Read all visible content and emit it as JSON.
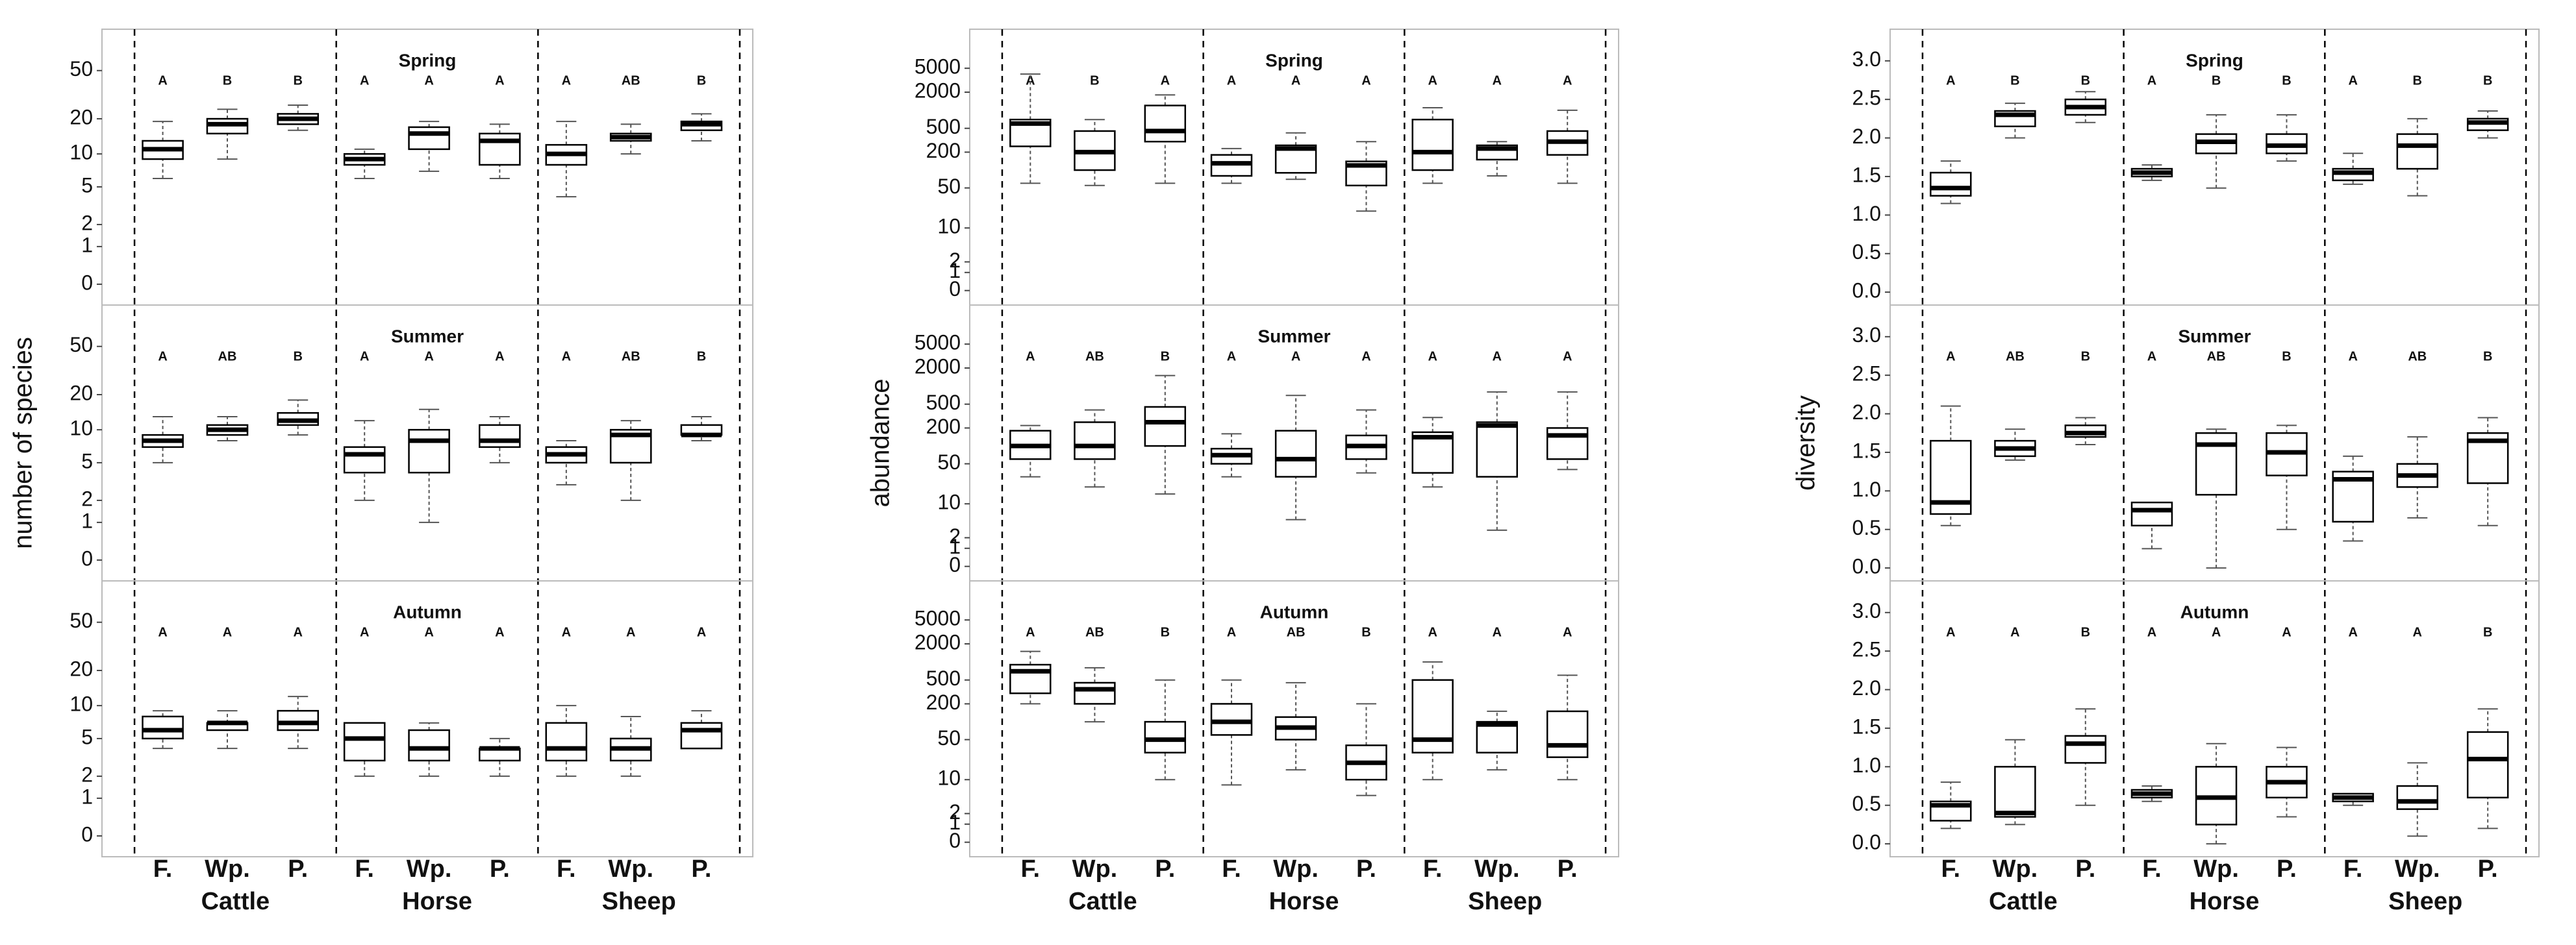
{
  "chart_data": [
    {
      "type": "box",
      "scale": "log1p",
      "ylabel": "number of species",
      "ylim": [
        -0.25,
        80
      ],
      "yticks": [
        0,
        1,
        2,
        5,
        10,
        20,
        50
      ],
      "groups": [
        "Cattle",
        "Horse",
        "Sheep"
      ],
      "subcategories": [
        "F.",
        "Wp.",
        "P."
      ],
      "facets": [
        {
          "title": "Spring",
          "letters": [
            "A",
            "B",
            "B",
            "A",
            "A",
            "A",
            "A",
            "AB",
            "B"
          ],
          "boxes": [
            [
              6,
              9,
              11,
              13,
              19
            ],
            [
              9,
              15,
              18,
              20,
              24
            ],
            [
              16,
              18,
              20,
              22,
              26
            ],
            [
              6,
              8,
              9,
              10,
              11
            ],
            [
              7,
              11,
              15,
              17,
              19
            ],
            [
              6,
              8,
              13,
              15,
              18
            ],
            [
              4,
              8,
              10,
              12,
              19
            ],
            [
              10,
              13,
              14,
              15,
              18
            ],
            [
              13,
              16,
              18,
              19,
              22
            ]
          ]
        },
        {
          "title": "Summer",
          "letters": [
            "A",
            "AB",
            "B",
            "A",
            "A",
            "A",
            "A",
            "AB",
            "B"
          ],
          "boxes": [
            [
              5,
              7,
              8,
              9,
              13
            ],
            [
              8,
              9,
              10,
              11,
              13
            ],
            [
              9,
              11,
              12,
              14,
              18
            ],
            [
              2,
              4,
              6,
              7,
              12
            ],
            [
              1,
              4,
              8,
              10,
              15
            ],
            [
              5,
              7,
              8,
              11,
              13
            ],
            [
              3,
              5,
              6,
              7,
              8
            ],
            [
              2,
              5,
              9,
              10,
              12
            ],
            [
              8,
              9,
              9,
              11,
              13
            ]
          ]
        },
        {
          "title": "Autumn",
          "letters": [
            "A",
            "A",
            "A",
            "A",
            "A",
            "A",
            "A",
            "A",
            "A"
          ],
          "boxes": [
            [
              4,
              5,
              6,
              8,
              9
            ],
            [
              4,
              6,
              7,
              7,
              9
            ],
            [
              4,
              6,
              7,
              9,
              12
            ],
            [
              2,
              3,
              5,
              7,
              7
            ],
            [
              2,
              3,
              4,
              6,
              7
            ],
            [
              2,
              3,
              4,
              4,
              5
            ],
            [
              2,
              3,
              4,
              7,
              10
            ],
            [
              2,
              3,
              4,
              5,
              8
            ],
            [
              4,
              4,
              6,
              7,
              9
            ]
          ]
        }
      ]
    },
    {
      "type": "box",
      "scale": "log1p",
      "ylabel": "abundance",
      "ylim": [
        -0.3,
        12000
      ],
      "yticks": [
        0,
        1,
        2,
        10,
        50,
        200,
        500,
        2000,
        5000
      ],
      "groups": [
        "Cattle",
        "Horse",
        "Sheep"
      ],
      "subcategories": [
        "F.",
        "Wp.",
        "P."
      ],
      "facets": [
        {
          "title": "Spring",
          "letters": [
            "A",
            "B",
            "A",
            "A",
            "A",
            "A",
            "A",
            "A",
            "A"
          ],
          "boxes": [
            [
              60,
              250,
              600,
              700,
              4000
            ],
            [
              55,
              100,
              200,
              450,
              700
            ],
            [
              60,
              300,
              450,
              1200,
              1800
            ],
            [
              60,
              80,
              130,
              180,
              230
            ],
            [
              70,
              90,
              230,
              260,
              420
            ],
            [
              20,
              55,
              120,
              140,
              300
            ],
            [
              60,
              100,
              200,
              700,
              1100
            ],
            [
              80,
              150,
              230,
              260,
              300
            ],
            [
              60,
              180,
              300,
              450,
              1000
            ]
          ]
        },
        {
          "title": "Summer",
          "letters": [
            "A",
            "AB",
            "B",
            "A",
            "A",
            "A",
            "A",
            "A",
            "A"
          ],
          "boxes": [
            [
              30,
              60,
              100,
              180,
              220
            ],
            [
              20,
              60,
              100,
              250,
              400
            ],
            [
              15,
              100,
              250,
              450,
              1500
            ],
            [
              30,
              50,
              70,
              90,
              160
            ],
            [
              5,
              30,
              60,
              180,
              700
            ],
            [
              35,
              60,
              100,
              150,
              400
            ],
            [
              20,
              35,
              140,
              170,
              300
            ],
            [
              3,
              30,
              220,
              250,
              800
            ],
            [
              40,
              60,
              150,
              200,
              800
            ]
          ]
        },
        {
          "title": "Autumn",
          "letters": [
            "A",
            "AB",
            "B",
            "A",
            "AB",
            "B",
            "A",
            "A",
            "A"
          ],
          "boxes": [
            [
              200,
              300,
              700,
              900,
              1500
            ],
            [
              100,
              200,
              350,
              450,
              800
            ],
            [
              10,
              30,
              50,
              100,
              500
            ],
            [
              8,
              60,
              100,
              200,
              500
            ],
            [
              15,
              50,
              80,
              120,
              450
            ],
            [
              5,
              10,
              20,
              40,
              200
            ],
            [
              10,
              30,
              50,
              500,
              1000
            ],
            [
              15,
              30,
              90,
              100,
              150
            ],
            [
              10,
              25,
              40,
              150,
              600
            ]
          ]
        }
      ]
    },
    {
      "type": "box",
      "scale": "linear",
      "ylabel": "diversity",
      "ylim": [
        -0.1,
        3.2
      ],
      "yticks": [
        {
          "value": 0,
          "label": "0.0"
        },
        {
          "value": 0.5,
          "label": "0.5"
        },
        {
          "value": 1,
          "label": "1.0"
        },
        {
          "value": 1.5,
          "label": "1.5"
        },
        {
          "value": 2,
          "label": "2.0"
        },
        {
          "value": 2.5,
          "label": "2.5"
        },
        {
          "value": 3,
          "label": "3.0"
        }
      ],
      "groups": [
        "Cattle",
        "Horse",
        "Sheep"
      ],
      "subcategories": [
        "F.",
        "Wp.",
        "P."
      ],
      "facets": [
        {
          "title": "Spring",
          "letters": [
            "A",
            "B",
            "B",
            "A",
            "B",
            "B",
            "A",
            "B",
            "B"
          ],
          "boxes": [
            [
              1.15,
              1.25,
              1.35,
              1.55,
              1.7
            ],
            [
              2.0,
              2.15,
              2.3,
              2.35,
              2.45
            ],
            [
              2.2,
              2.3,
              2.4,
              2.5,
              2.6
            ],
            [
              1.45,
              1.5,
              1.55,
              1.6,
              1.65
            ],
            [
              1.35,
              1.8,
              1.95,
              2.05,
              2.3
            ],
            [
              1.7,
              1.8,
              1.9,
              2.05,
              2.3
            ],
            [
              1.4,
              1.45,
              1.55,
              1.6,
              1.8
            ],
            [
              1.25,
              1.6,
              1.9,
              2.05,
              2.25
            ],
            [
              2.0,
              2.1,
              2.2,
              2.25,
              2.35
            ]
          ]
        },
        {
          "title": "Summer",
          "letters": [
            "A",
            "AB",
            "B",
            "A",
            "AB",
            "B",
            "A",
            "AB",
            "B"
          ],
          "boxes": [
            [
              0.55,
              0.7,
              0.85,
              1.65,
              2.1
            ],
            [
              1.4,
              1.45,
              1.55,
              1.65,
              1.8
            ],
            [
              1.6,
              1.7,
              1.75,
              1.85,
              1.95
            ],
            [
              0.25,
              0.55,
              0.75,
              0.85,
              0.85
            ],
            [
              0,
              0.95,
              1.6,
              1.75,
              1.8
            ],
            [
              0.5,
              1.2,
              1.5,
              1.75,
              1.85
            ],
            [
              0.35,
              0.6,
              1.15,
              1.25,
              1.45
            ],
            [
              0.65,
              1.05,
              1.2,
              1.35,
              1.7
            ],
            [
              0.55,
              1.1,
              1.65,
              1.75,
              1.95
            ]
          ]
        },
        {
          "title": "Autumn",
          "letters": [
            "A",
            "A",
            "B",
            "A",
            "A",
            "A",
            "A",
            "A",
            "B"
          ],
          "boxes": [
            [
              0.2,
              0.3,
              0.5,
              0.55,
              0.8
            ],
            [
              0.25,
              0.35,
              0.4,
              1.0,
              1.35
            ],
            [
              0.5,
              1.05,
              1.3,
              1.4,
              1.75
            ],
            [
              0.55,
              0.6,
              0.65,
              0.7,
              0.75
            ],
            [
              0,
              0.25,
              0.6,
              1.0,
              1.3
            ],
            [
              0.35,
              0.6,
              0.8,
              1.0,
              1.25
            ],
            [
              0.5,
              0.55,
              0.6,
              0.65,
              0.65
            ],
            [
              0.1,
              0.45,
              0.55,
              0.75,
              1.05
            ],
            [
              0.2,
              0.6,
              1.1,
              1.45,
              1.75
            ]
          ]
        }
      ]
    }
  ]
}
